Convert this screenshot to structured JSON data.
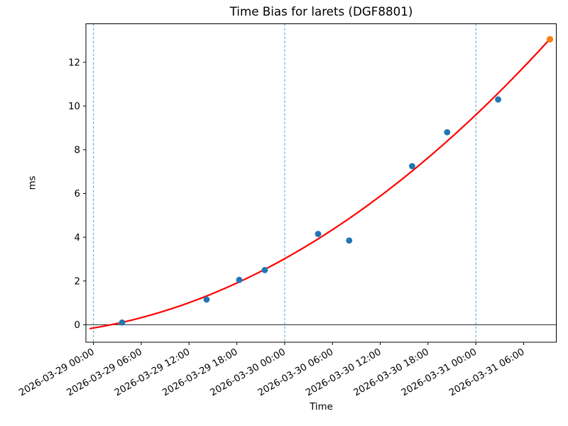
{
  "chart_data": {
    "type": "scatter",
    "title": "Time Bias for larets (DGF8801)",
    "xlabel": "Time",
    "ylabel": "ms",
    "x_axis": {
      "epoch_start": "2026-03-29 00:00",
      "range_hours": [
        -0.95,
        58.1
      ],
      "ticks": [
        {
          "hours": 0,
          "label": "2026-03-29 00:00"
        },
        {
          "hours": 6,
          "label": "2026-03-29 06:00"
        },
        {
          "hours": 12,
          "label": "2026-03-29 12:00"
        },
        {
          "hours": 18,
          "label": "2026-03-29 18:00"
        },
        {
          "hours": 24,
          "label": "2026-03-30 00:00"
        },
        {
          "hours": 30,
          "label": "2026-03-30 06:00"
        },
        {
          "hours": 36,
          "label": "2026-03-30 12:00"
        },
        {
          "hours": 42,
          "label": "2026-03-30 18:00"
        },
        {
          "hours": 48,
          "label": "2026-03-31 00:00"
        },
        {
          "hours": 54,
          "label": "2026-03-31 06:00"
        }
      ]
    },
    "y_axis": {
      "range": [
        -0.8,
        13.76
      ],
      "ticks": [
        0,
        2,
        4,
        6,
        8,
        10,
        12
      ]
    },
    "day_boundary_lines_hours": [
      0,
      24,
      48
    ],
    "zero_reference_line_ms": 0,
    "series": [
      {
        "name": "time-bias-observations",
        "color": "#1f77b4",
        "marker_radius": 4.4,
        "points": [
          {
            "time": "2026-03-29 03:35",
            "hours": 3.6,
            "ms": 0.1
          },
          {
            "time": "2026-03-29 14:10",
            "hours": 14.2,
            "ms": 1.15
          },
          {
            "time": "2026-03-29 18:20",
            "hours": 18.3,
            "ms": 2.05
          },
          {
            "time": "2026-03-29 21:30",
            "hours": 21.5,
            "ms": 2.5
          },
          {
            "time": "2026-03-30 04:10",
            "hours": 28.2,
            "ms": 4.15
          },
          {
            "time": "2026-03-30 08:05",
            "hours": 32.1,
            "ms": 3.85
          },
          {
            "time": "2026-03-30 16:00",
            "hours": 40.0,
            "ms": 7.25
          },
          {
            "time": "2026-03-30 20:25",
            "hours": 44.4,
            "ms": 8.8
          },
          {
            "time": "2026-03-31 02:50",
            "hours": 50.8,
            "ms": 10.3
          }
        ]
      },
      {
        "name": "latest-observation",
        "color": "#ff7f0e",
        "marker_radius": 4.6,
        "points": [
          {
            "time": "2026-03-31 09:20",
            "hours": 57.3,
            "ms": 13.05
          }
        ]
      }
    ],
    "fit_curve": {
      "name": "polynomial-fit",
      "color": "#ff0000",
      "line_width": 2.2,
      "poly_coeffs_ms_vs_hours": {
        "a2": 0.00296,
        "a1": 0.061,
        "a0": -0.15
      },
      "domain_hours": [
        -0.4,
        57.3
      ]
    },
    "styles": {
      "vline_color": "#4e96c8",
      "zero_line_color": "#000000",
      "axis_color": "#000000",
      "background": "#ffffff"
    }
  }
}
